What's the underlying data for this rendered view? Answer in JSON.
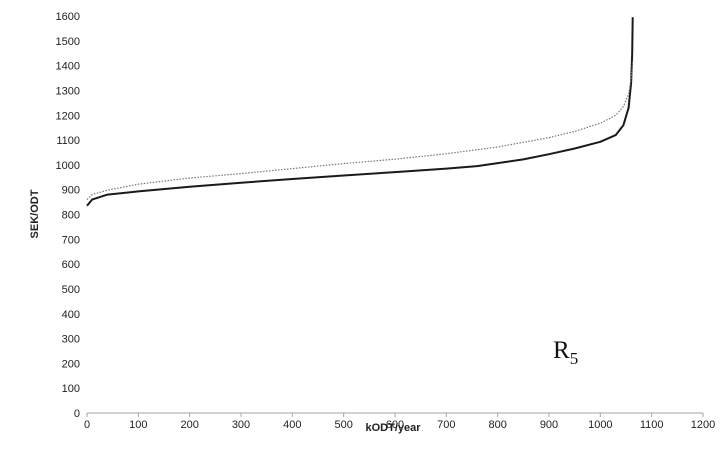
{
  "chart_data": {
    "type": "line",
    "title": "",
    "xlabel": "kODT/year",
    "ylabel": "SEK/ODT",
    "xlim": [
      0,
      1200
    ],
    "ylim": [
      0,
      1600
    ],
    "x_ticks": [
      0,
      100,
      200,
      300,
      400,
      500,
      600,
      700,
      800,
      900,
      1000,
      1100,
      1200
    ],
    "y_ticks": [
      0,
      100,
      200,
      300,
      400,
      500,
      600,
      700,
      800,
      900,
      1000,
      1100,
      1200,
      1300,
      1400,
      1500,
      1600
    ],
    "grid": false,
    "legend": "none",
    "annotation": {
      "main": "R",
      "sub": "5"
    },
    "series": [
      {
        "style": "solid",
        "color": "#1a1a1a",
        "x": [
          0,
          10,
          40,
          100,
          200,
          300,
          400,
          500,
          600,
          700,
          760,
          800,
          850,
          900,
          950,
          1000,
          1030,
          1045,
          1055,
          1060,
          1062,
          1063
        ],
        "y": [
          835,
          860,
          880,
          893,
          912,
          928,
          943,
          957,
          971,
          985,
          995,
          1007,
          1022,
          1043,
          1066,
          1093,
          1120,
          1160,
          1230,
          1330,
          1450,
          1595
        ]
      },
      {
        "style": "dotted",
        "color": "#777777",
        "x": [
          0,
          10,
          40,
          100,
          200,
          300,
          400,
          500,
          600,
          700,
          800,
          900,
          950,
          1000,
          1030,
          1045,
          1055,
          1060,
          1063
        ],
        "y": [
          860,
          880,
          898,
          922,
          947,
          965,
          985,
          1005,
          1023,
          1045,
          1072,
          1110,
          1135,
          1168,
          1200,
          1235,
          1285,
          1345,
          1420
        ]
      }
    ]
  }
}
